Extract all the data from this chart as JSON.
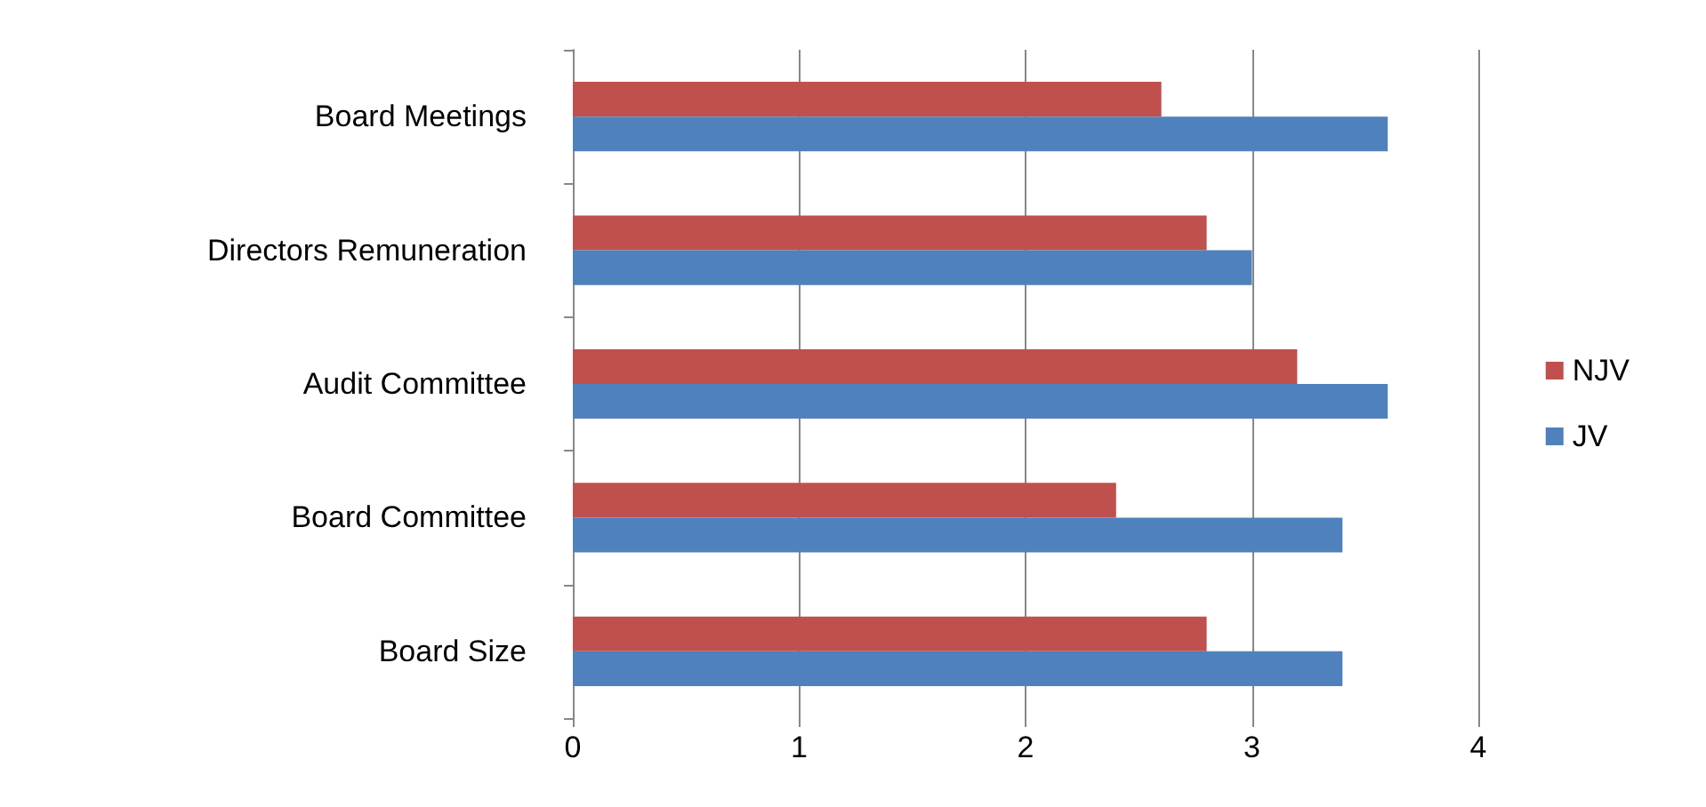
{
  "chart_data": {
    "type": "bar",
    "orientation": "horizontal",
    "categories": [
      "Board Meetings",
      "Directors Remuneration",
      "Audit Committee",
      "Board Committee",
      "Board Size"
    ],
    "series": [
      {
        "name": "NJV",
        "color": "#c0504d",
        "values": [
          2.6,
          2.8,
          3.2,
          2.4,
          2.8
        ]
      },
      {
        "name": "JV",
        "color": "#4f81bd",
        "values": [
          3.6,
          3.0,
          3.6,
          3.4,
          3.4
        ]
      }
    ],
    "xlim": [
      0,
      4
    ],
    "xticks": [
      0,
      1,
      2,
      3,
      4
    ],
    "grid": "x",
    "legend": "right"
  }
}
